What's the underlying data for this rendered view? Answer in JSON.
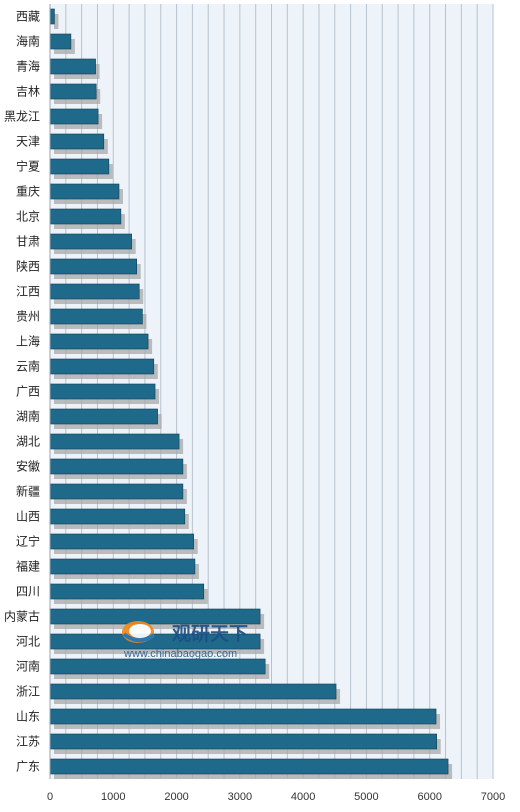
{
  "chart_data": {
    "type": "bar",
    "orientation": "horizontal",
    "categories": [
      "西藏",
      "海南",
      "青海",
      "吉林",
      "黑龙江",
      "天津",
      "宁夏",
      "重庆",
      "北京",
      "甘肃",
      "陕西",
      "江西",
      "贵州",
      "上海",
      "云南",
      "广西",
      "湖南",
      "湖北",
      "安徽",
      "新疆",
      "山西",
      "辽宁",
      "福建",
      "四川",
      "内蒙古",
      "河北",
      "河南",
      "浙江",
      "山东",
      "江苏",
      "广东"
    ],
    "values": [
      70,
      330,
      720,
      730,
      760,
      850,
      930,
      1090,
      1120,
      1290,
      1370,
      1410,
      1460,
      1550,
      1640,
      1660,
      1700,
      2040,
      2100,
      2100,
      2130,
      2270,
      2290,
      2430,
      3320,
      3320,
      3400,
      4520,
      6100,
      6110,
      6290
    ],
    "xlim": [
      0,
      7000
    ],
    "xticks": [
      "0",
      "1000",
      "2000",
      "3000",
      "4000",
      "5000",
      "6000",
      "7000"
    ],
    "grid": true,
    "colors": {
      "bar": "#1f6a8a",
      "bar_edge": "#0e3f56",
      "shadow": "#a8a8a8",
      "plot_bg": "#edf3f8",
      "grid": "#b6c3cf"
    }
  },
  "watermark": {
    "text_cn": "观研天下",
    "url": "www.chinabaogao.com",
    "icon": "chinabaogao-logo-icon"
  }
}
